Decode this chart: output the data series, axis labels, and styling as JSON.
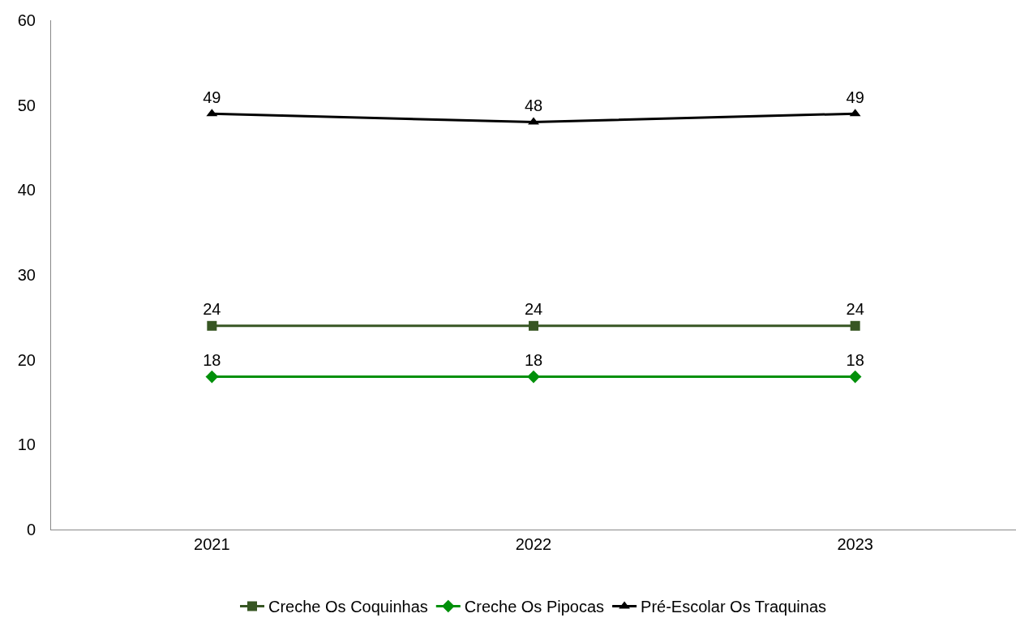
{
  "chart_data": {
    "type": "line",
    "categories": [
      "2021",
      "2022",
      "2023"
    ],
    "series": [
      {
        "name": "Creche Os Coquinhas",
        "color": "#375623",
        "marker": "square",
        "values": [
          24,
          24,
          24
        ]
      },
      {
        "name": "Creche Os Pipocas",
        "color": "#00900a",
        "marker": "diamond",
        "values": [
          18,
          18,
          18
        ]
      },
      {
        "name": "Pré-Escolar Os Traquinas",
        "color": "#000000",
        "marker": "triangle",
        "values": [
          49,
          48,
          49
        ]
      }
    ],
    "ylim": [
      0,
      60
    ],
    "yticks": [
      0,
      10,
      20,
      30,
      40,
      50,
      60
    ],
    "grid": false,
    "legend": "bottom",
    "data_labels": true,
    "line_style": "solid"
  }
}
